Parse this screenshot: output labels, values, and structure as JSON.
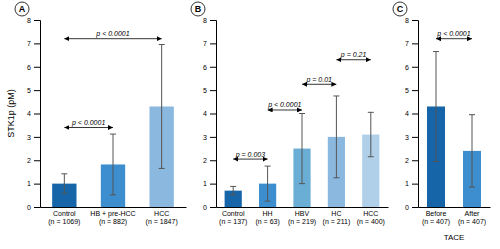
{
  "chart_data": [
    {
      "type": "bar",
      "title": "A",
      "categories": [
        "Control\n(n = 1069)",
        "HB + pre-HCC\n(n = 882)",
        "HCC\n(n = 1847)"
      ],
      "values": [
        1.0,
        1.82,
        4.3
      ],
      "errors": [
        0.42,
        1.3,
        2.65
      ],
      "colors": [
        "#1565a8",
        "#3d8ecf",
        "#8ab8df"
      ],
      "ylabel": "STK1p (pM)",
      "ylim": [
        0,
        8
      ],
      "yticks": [
        0,
        1,
        2,
        3,
        4,
        5,
        6,
        7,
        8
      ],
      "grid": false,
      "annotations": [
        {
          "x1": 0,
          "x2": 1,
          "y": 3.4,
          "text": "p < 0.0001"
        },
        {
          "x1": 0,
          "x2": 2,
          "y": 7.2,
          "text": "p < 0.0001"
        }
      ]
    },
    {
      "type": "bar",
      "title": "B",
      "categories": [
        "Control\n(n = 137)",
        "HH\n(n = 63)",
        "HBV\n(n = 219)",
        "HC\n(n = 211)",
        "HCC\n(n = 400)"
      ],
      "values": [
        0.7,
        1.0,
        2.5,
        3.0,
        3.1
      ],
      "errors": [
        0.18,
        0.75,
        1.5,
        1.75,
        0.95
      ],
      "colors": [
        "#1565a8",
        "#3d8ecf",
        "#6aadd5",
        "#8ab8df",
        "#b0cfe8"
      ],
      "ylim": [
        0,
        8
      ],
      "yticks": [
        0,
        1,
        2,
        3,
        4,
        5,
        6,
        7,
        8
      ],
      "grid": false,
      "annotations": [
        {
          "x1": 0,
          "x2": 1,
          "y": 2.05,
          "text": "p = 0.003"
        },
        {
          "x1": 1,
          "x2": 2,
          "y": 4.15,
          "text": "p < 0.0001"
        },
        {
          "x1": 2,
          "x2": 3,
          "y": 5.25,
          "text": "p = 0.01"
        },
        {
          "x1": 3,
          "x2": 4,
          "y": 6.3,
          "text": "p = 0.21"
        }
      ]
    },
    {
      "type": "bar",
      "title": "C",
      "categories": [
        "Before\n(n = 407)",
        "After\n(n = 407)"
      ],
      "values": [
        4.3,
        2.4
      ],
      "errors": [
        2.35,
        1.55
      ],
      "colors": [
        "#1565a8",
        "#3d8ecf"
      ],
      "xlabel": "TACE",
      "ylim": [
        0,
        8
      ],
      "yticks": [
        0,
        1,
        2,
        3,
        4,
        5,
        6,
        7,
        8
      ],
      "grid": false,
      "annotations": [
        {
          "x1": 0,
          "x2": 1,
          "y": 7.2,
          "text": "p < 0.0001"
        }
      ]
    }
  ]
}
